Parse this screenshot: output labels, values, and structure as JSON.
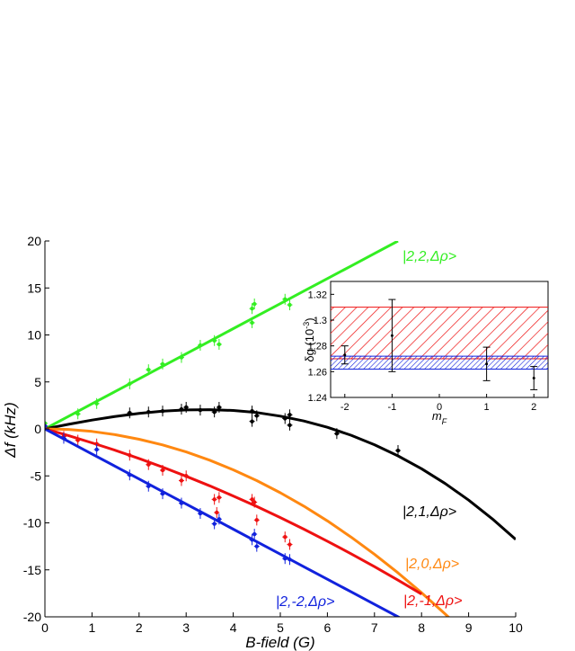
{
  "chart_data": [
    {
      "type": "line",
      "xlabel": "B-field (G)",
      "ylabel": "Δf (kHz)",
      "xlim": [
        0,
        10
      ],
      "ylim": [
        -20,
        20
      ],
      "x_ticks": [
        0,
        1,
        2,
        3,
        4,
        5,
        6,
        7,
        8,
        9,
        10
      ],
      "y_ticks": [
        -20,
        -15,
        -10,
        -5,
        0,
        5,
        10,
        15,
        20
      ],
      "grid": false,
      "curve_labels": [
        {
          "text": "|2,2,Δρ>",
          "series": "|2,2,Δρ>"
        },
        {
          "text": "|2,1,Δρ>",
          "series": "|2,1,Δρ>"
        },
        {
          "text": "|2,0,Δρ>",
          "series": "|2,0,Δρ>"
        },
        {
          "text": "|2,-1,Δρ>",
          "series": "|2,-1,Δρ>"
        },
        {
          "text": "|2,-2,Δρ>",
          "series": "|2,-2,Δρ>"
        }
      ],
      "series": [
        {
          "name": "|2,2,Δρ>",
          "color": "#33ee22",
          "line": {
            "x": [
              0,
              0.5,
              1,
              1.5,
              2,
              2.5,
              3,
              3.5,
              4,
              4.5,
              5,
              5.5,
              6,
              6.5,
              7,
              7.5
            ],
            "y": [
              0,
              1.33,
              2.67,
              4.0,
              5.33,
              6.67,
              8.0,
              9.33,
              10.67,
              12.0,
              13.33,
              14.67,
              16.0,
              17.33,
              18.67,
              20.0
            ]
          },
          "points": [
            {
              "x": 0.0,
              "y": 0.6
            },
            {
              "x": 0.7,
              "y": 1.6
            },
            {
              "x": 1.1,
              "y": 2.7
            },
            {
              "x": 1.8,
              "y": 4.8
            },
            {
              "x": 2.2,
              "y": 6.3
            },
            {
              "x": 2.5,
              "y": 6.9
            },
            {
              "x": 2.9,
              "y": 7.6
            },
            {
              "x": 3.3,
              "y": 8.9
            },
            {
              "x": 3.6,
              "y": 9.4
            },
            {
              "x": 3.7,
              "y": 9.0
            },
            {
              "x": 4.4,
              "y": 11.3
            },
            {
              "x": 4.4,
              "y": 12.8
            },
            {
              "x": 4.45,
              "y": 13.3
            },
            {
              "x": 5.1,
              "y": 13.8
            },
            {
              "x": 5.2,
              "y": 13.2
            }
          ]
        },
        {
          "name": "|2,1,Δρ>",
          "color": "#000000",
          "line": {
            "x": [
              0,
              0.5,
              1,
              1.5,
              2,
              2.5,
              3,
              3.5,
              4,
              4.5,
              5,
              5.5,
              6,
              6.5,
              7,
              7.5,
              8,
              8.5,
              9,
              9.5,
              10
            ],
            "y": [
              0,
              0.49,
              0.94,
              1.33,
              1.65,
              1.89,
              2.02,
              2.05,
              1.96,
              1.74,
              1.36,
              0.84,
              0.17,
              -0.67,
              -1.68,
              -2.87,
              -4.24,
              -5.81,
              -7.58,
              -9.56,
              -11.76
            ]
          },
          "points": [
            {
              "x": 0.0,
              "y": 0.3
            },
            {
              "x": 1.8,
              "y": 1.7
            },
            {
              "x": 2.2,
              "y": 1.8
            },
            {
              "x": 2.5,
              "y": 1.9
            },
            {
              "x": 2.9,
              "y": 2.1
            },
            {
              "x": 3.0,
              "y": 2.3
            },
            {
              "x": 3.3,
              "y": 2.0
            },
            {
              "x": 3.6,
              "y": 1.8
            },
            {
              "x": 3.7,
              "y": 2.3
            },
            {
              "x": 4.4,
              "y": 1.9
            },
            {
              "x": 4.4,
              "y": 0.8
            },
            {
              "x": 4.5,
              "y": 1.4
            },
            {
              "x": 5.1,
              "y": 1.1
            },
            {
              "x": 5.2,
              "y": 0.4
            },
            {
              "x": 5.2,
              "y": 1.5
            },
            {
              "x": 6.2,
              "y": -0.5
            },
            {
              "x": 7.5,
              "y": -2.3
            }
          ]
        },
        {
          "name": "|2,0,Δρ>",
          "color": "#ff8811",
          "line": {
            "x": [
              0,
              0.5,
              1,
              1.5,
              2,
              2.5,
              3,
              3.5,
              4,
              4.5,
              5,
              5.5,
              6,
              6.5,
              7,
              7.5,
              8,
              8.5,
              9
            ],
            "y": [
              0,
              -0.06,
              -0.27,
              -0.62,
              -1.1,
              -1.7,
              -2.45,
              -3.33,
              -4.35,
              -5.5,
              -6.79,
              -8.22,
              -9.79,
              -11.5,
              -13.34,
              -15.32,
              -17.44,
              -19.69,
              -22.0
            ]
          },
          "points": []
        },
        {
          "name": "|2,-1,Δρ>",
          "color": "#ee1111",
          "line": {
            "x": [
              0,
              0.5,
              1,
              1.5,
              2,
              2.5,
              3,
              3.5,
              4,
              4.5,
              5,
              5.5,
              6,
              6.5,
              7,
              7.5,
              8
            ],
            "y": [
              0,
              -0.71,
              -1.48,
              -2.29,
              -3.15,
              -4.07,
              -5.04,
              -6.06,
              -7.14,
              -8.26,
              -9.44,
              -10.67,
              -11.95,
              -13.28,
              -14.66,
              -16.1,
              -17.58
            ]
          },
          "points": [
            {
              "x": 0.0,
              "y": 0.0
            },
            {
              "x": 0.4,
              "y": -0.8
            },
            {
              "x": 0.7,
              "y": -1.2
            },
            {
              "x": 1.1,
              "y": -1.6
            },
            {
              "x": 1.8,
              "y": -2.8
            },
            {
              "x": 2.2,
              "y": -3.8
            },
            {
              "x": 2.5,
              "y": -4.4
            },
            {
              "x": 2.9,
              "y": -5.5
            },
            {
              "x": 3.0,
              "y": -5.0
            },
            {
              "x": 3.6,
              "y": -7.5
            },
            {
              "x": 3.65,
              "y": -8.9
            },
            {
              "x": 3.7,
              "y": -7.3
            },
            {
              "x": 4.4,
              "y": -7.5
            },
            {
              "x": 4.45,
              "y": -7.8
            },
            {
              "x": 4.5,
              "y": -9.7
            },
            {
              "x": 5.1,
              "y": -11.5
            },
            {
              "x": 5.2,
              "y": -12.3
            }
          ]
        },
        {
          "name": "|2,-2,Δρ>",
          "color": "#1122dd",
          "line": {
            "x": [
              0,
              0.5,
              1,
              1.5,
              2,
              2.5,
              3,
              3.5,
              4,
              4.5,
              5,
              5.5,
              6,
              6.5,
              7,
              7.5,
              8
            ],
            "y": [
              0,
              -1.33,
              -2.67,
              -4.0,
              -5.33,
              -6.67,
              -8.0,
              -9.33,
              -10.67,
              -12.0,
              -13.33,
              -14.67,
              -16.0,
              -17.33,
              -18.67,
              -20.0,
              -21.33
            ]
          },
          "points": [
            {
              "x": 0.0,
              "y": 0.3
            },
            {
              "x": 0.4,
              "y": -1.0
            },
            {
              "x": 1.1,
              "y": -2.2
            },
            {
              "x": 1.8,
              "y": -4.9
            },
            {
              "x": 2.2,
              "y": -6.1
            },
            {
              "x": 2.5,
              "y": -6.9
            },
            {
              "x": 2.9,
              "y": -7.9
            },
            {
              "x": 3.3,
              "y": -9.0
            },
            {
              "x": 3.6,
              "y": -10.1
            },
            {
              "x": 3.7,
              "y": -9.6
            },
            {
              "x": 4.4,
              "y": -11.8
            },
            {
              "x": 4.45,
              "y": -11.2
            },
            {
              "x": 4.5,
              "y": -12.5
            },
            {
              "x": 5.1,
              "y": -13.8
            },
            {
              "x": 5.2,
              "y": -13.9
            }
          ]
        }
      ]
    },
    {
      "type": "scatter",
      "xlabel": "m_F",
      "ylabel": "δg (10^-3)",
      "xlim": [
        -2.3,
        2.3
      ],
      "ylim": [
        1.24,
        1.33
      ],
      "x_ticks": [
        -2,
        -1,
        0,
        1,
        2
      ],
      "y_ticks": [
        1.24,
        1.26,
        1.28,
        1.3,
        1.32
      ],
      "grid": false,
      "bands": [
        {
          "color": "#ee1111",
          "pattern": "hatched",
          "ymin": 1.27,
          "ymax": 1.31
        },
        {
          "color": "#1122dd",
          "pattern": "hatched",
          "ymin": 1.262,
          "ymax": 1.272
        }
      ],
      "points": [
        {
          "x": -2,
          "y": 1.273,
          "err": 0.007
        },
        {
          "x": -1,
          "y": 1.288,
          "err": 0.028
        },
        {
          "x": 1,
          "y": 1.266,
          "err": 0.013
        },
        {
          "x": 2,
          "y": 1.255,
          "err": 0.009
        }
      ]
    }
  ]
}
